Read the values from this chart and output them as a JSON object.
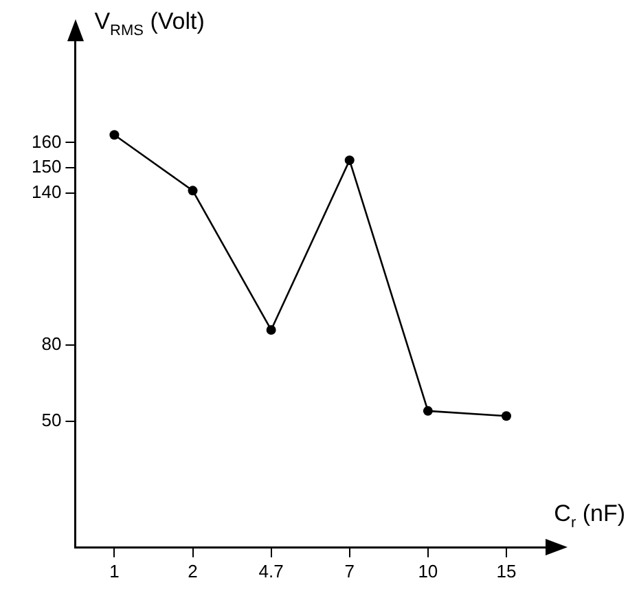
{
  "chart_data": {
    "type": "line",
    "xlabel": "C$_{r}$ (nF)",
    "ylabel": "V$_{RMS}$ (Volt)",
    "categories": [
      "1",
      "2",
      "4.7",
      "7",
      "10",
      "15"
    ],
    "series": [
      {
        "color": "#000000",
        "values": [
          163,
          141,
          86,
          153,
          54,
          52
        ]
      }
    ],
    "ylim": [
      0,
      200
    ],
    "yticks": [
      50,
      80,
      140,
      150,
      160
    ],
    "grid": false,
    "marker": "circle",
    "line_style": "solid"
  }
}
